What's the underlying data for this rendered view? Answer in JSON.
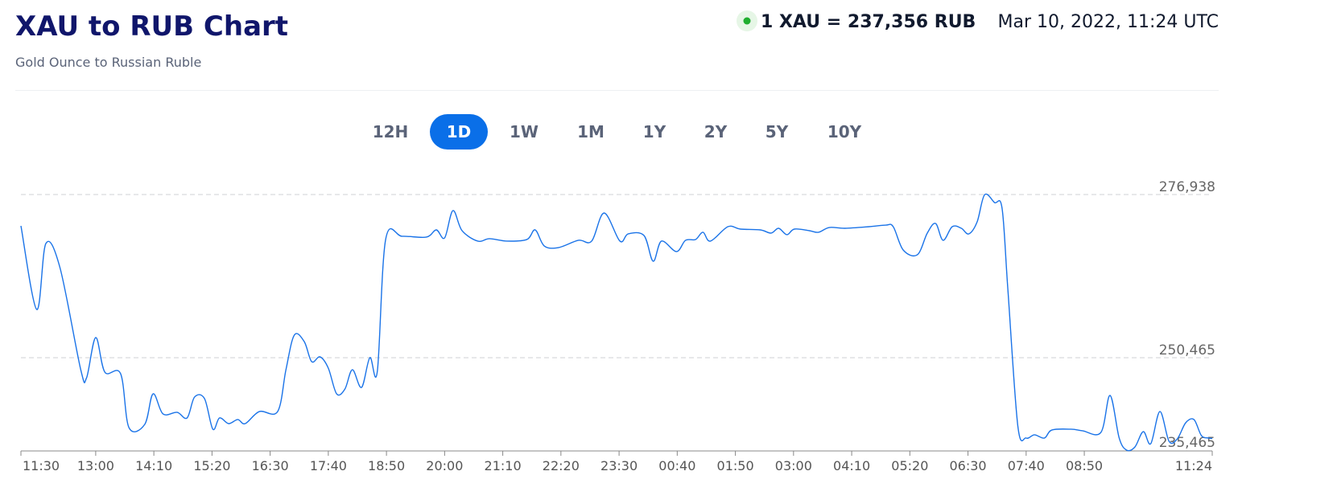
{
  "header": {
    "title": "XAU to RUB Chart",
    "subtitle": "Gold Ounce to Russian Ruble",
    "rate": "1 XAU = 237,356 RUB",
    "date": "Mar 10, 2022, 11:24 UTC"
  },
  "ranges": [
    "12H",
    "1D",
    "1W",
    "1M",
    "1Y",
    "2Y",
    "5Y",
    "10Y"
  ],
  "active_range": 1,
  "chart_data": {
    "type": "line",
    "x": [
      0,
      19,
      30,
      47,
      72,
      79,
      90,
      101,
      120,
      130,
      149,
      159,
      171,
      188,
      200,
      209,
      221,
      231,
      239,
      250,
      261,
      270,
      287,
      309,
      319,
      329,
      341,
      350,
      360,
      370,
      380,
      390,
      399,
      410,
      420,
      429,
      439,
      459,
      488,
      500,
      510,
      520,
      531,
      550,
      564,
      585,
      609,
      619,
      630,
      647,
      671,
      687,
      702,
      721,
      731,
      750,
      761,
      771,
      789,
      800,
      812,
      821,
      830,
      851,
      866,
      890,
      903,
      912,
      922,
      931,
      949,
      960,
      973,
      992,
      1021,
      1041,
      1050,
      1062,
      1079,
      1091,
      1101,
      1110,
      1121,
      1132,
      1141,
      1151,
      1160,
      1172,
      1181,
      1188,
      1200,
      1210,
      1220,
      1232,
      1241,
      1264,
      1278,
      1300,
      1311,
      1322,
      1331,
      1341,
      1351,
      1360,
      1371,
      1382,
      1392,
      1402,
      1412,
      1421,
      1430,
      1434
    ],
    "series": [
      {
        "name": "XAU/RUB",
        "color": "#1a73e8",
        "values": [
          271850,
          258290,
          268980,
          265070,
          248510,
          247200,
          253730,
          248120,
          247860,
          239120,
          239640,
          244600,
          241340,
          241600,
          240690,
          244080,
          243820,
          238860,
          240690,
          239770,
          240430,
          239770,
          241730,
          241730,
          248510,
          254120,
          253080,
          249820,
          250600,
          248770,
          244600,
          245380,
          248510,
          245640,
          250470,
          248250,
          269640,
          270160,
          270030,
          271200,
          269900,
          274330,
          271070,
          269380,
          269770,
          269380,
          269640,
          271200,
          268590,
          268330,
          269510,
          269380,
          273940,
          269380,
          270550,
          270290,
          266120,
          269380,
          267680,
          269510,
          269640,
          270810,
          269380,
          271720,
          271330,
          271200,
          270680,
          271460,
          270420,
          271330,
          271070,
          270810,
          271590,
          271460,
          271720,
          271980,
          271720,
          267940,
          267160,
          270680,
          272240,
          269510,
          271720,
          271460,
          270550,
          272500,
          276900,
          275630,
          274720,
          261550,
          239380,
          237430,
          237950,
          237430,
          238730,
          238860,
          238600,
          238340,
          244340,
          237430,
          235470,
          235990,
          238470,
          236510,
          241730,
          236900,
          237300,
          239900,
          240430,
          237820,
          237430,
          237356
        ]
      }
    ],
    "xlim": [
      0,
      1434
    ],
    "xticks": [
      {
        "value": 0,
        "label": "11:30"
      },
      {
        "value": 90,
        "label": "13:00"
      },
      {
        "value": 160,
        "label": "14:10"
      },
      {
        "value": 230,
        "label": "15:20"
      },
      {
        "value": 300,
        "label": "16:30"
      },
      {
        "value": 370,
        "label": "17:40"
      },
      {
        "value": 440,
        "label": "18:50"
      },
      {
        "value": 510,
        "label": "20:00"
      },
      {
        "value": 580,
        "label": "21:10"
      },
      {
        "value": 650,
        "label": "22:20"
      },
      {
        "value": 720,
        "label": "23:30"
      },
      {
        "value": 790,
        "label": "00:40"
      },
      {
        "value": 860,
        "label": "01:50"
      },
      {
        "value": 930,
        "label": "03:00"
      },
      {
        "value": 1000,
        "label": "04:10"
      },
      {
        "value": 1070,
        "label": "05:20"
      },
      {
        "value": 1140,
        "label": "06:30"
      },
      {
        "value": 1210,
        "label": "07:40"
      },
      {
        "value": 1280,
        "label": "08:50"
      },
      {
        "value": 1434,
        "label": "11:24"
      }
    ],
    "ylim": [
      235465,
      276938
    ],
    "yticks": [
      {
        "value": 235465,
        "label": "235,465"
      },
      {
        "value": 250465,
        "label": "250,465"
      },
      {
        "value": 276938,
        "label": "276,938"
      }
    ],
    "grid": true
  }
}
